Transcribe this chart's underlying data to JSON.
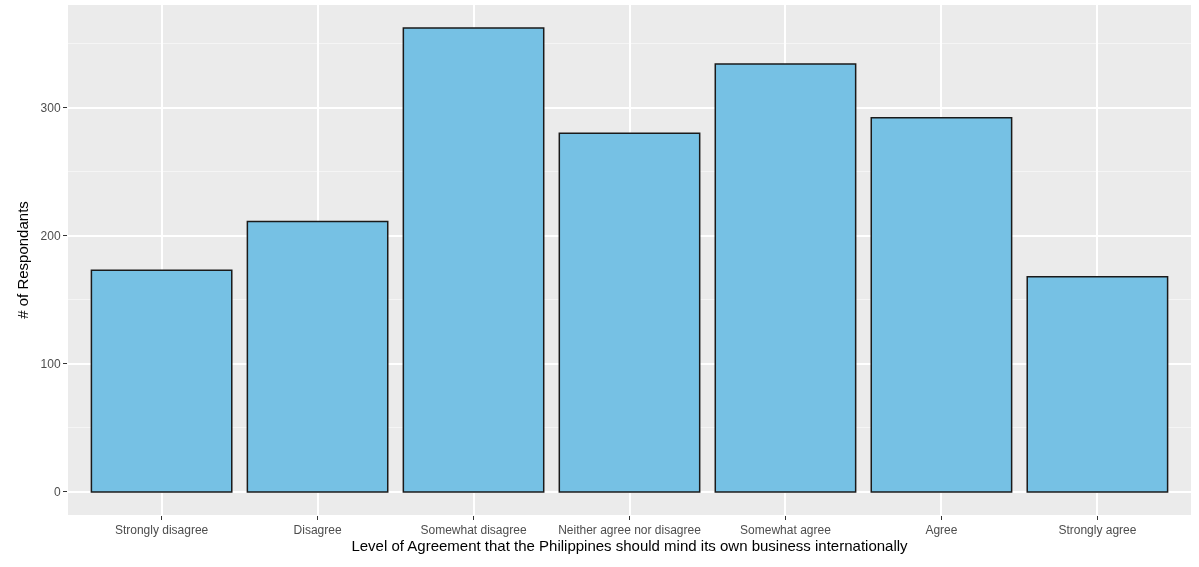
{
  "chart_data": {
    "type": "bar",
    "xlabel": "Level of Agreement that the Philippines should mind its own business internationally",
    "ylabel": "# of Respondants",
    "categories": [
      "Strongly disagree",
      "Disagree",
      "Somewhat disagree",
      "Neither agree nor disagree",
      "Somewhat agree",
      "Agree",
      "Strongly agree"
    ],
    "values": [
      173,
      211,
      362,
      280,
      334,
      292,
      168
    ],
    "color": "#76c1e4",
    "ylim": [
      -18,
      380
    ],
    "yticks": [
      0,
      100,
      200,
      300
    ],
    "grid": true
  }
}
